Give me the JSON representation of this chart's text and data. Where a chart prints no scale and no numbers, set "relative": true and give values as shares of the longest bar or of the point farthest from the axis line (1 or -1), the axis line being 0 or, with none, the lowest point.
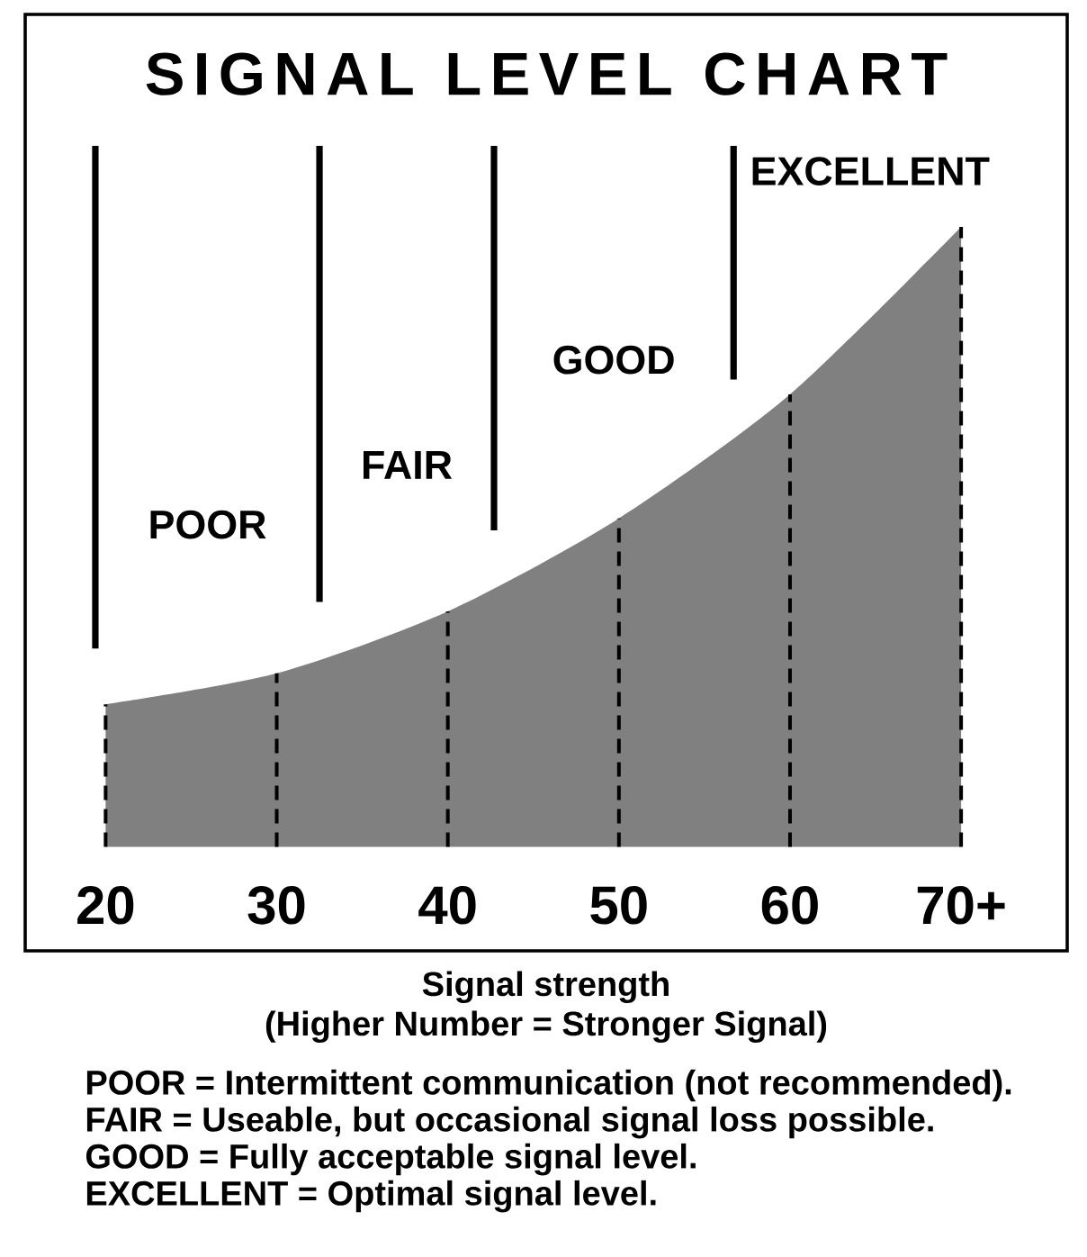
{
  "chart_data": {
    "type": "area",
    "title": "SIGNAL LEVEL CHART",
    "xlabel": "Signal strength",
    "x": [
      20,
      30,
      40,
      50,
      60,
      70
    ],
    "xlim": [
      15.3,
      76.2
    ],
    "xticks": [
      20,
      30,
      40,
      50,
      60,
      {
        "value": 70,
        "label": "70+"
      }
    ],
    "relative": true,
    "color": "#808080",
    "values": [
      0.23,
      0.28,
      0.38,
      0.53,
      0.73,
      1
    ],
    "ref_lines": [
      {
        "axis": "x",
        "value": 19.4,
        "label": "POOR"
      },
      {
        "axis": "x",
        "value": 32.5,
        "label": "FAIR"
      },
      {
        "axis": "x",
        "value": 42.7,
        "label": "GOOD"
      },
      {
        "axis": "x",
        "value": 56.7,
        "label": "EXCELLENT"
      },
      {
        "axis": "x",
        "value": 20,
        "line_style": "dashed"
      },
      {
        "axis": "x",
        "value": 30,
        "line_style": "dashed"
      },
      {
        "axis": "x",
        "value": 40,
        "line_style": "dashed"
      },
      {
        "axis": "x",
        "value": 50,
        "line_style": "dashed"
      },
      {
        "axis": "x",
        "value": 60,
        "line_style": "dashed"
      },
      {
        "axis": "x",
        "value": 70,
        "line_style": "dashed"
      }
    ],
    "annotations": [
      "(Higher Number = Stronger Signal)",
      "POOR = Intermittent communication (not recommended).",
      "FAIR = Useable, but occasional signal loss possible.",
      "GOOD = Fully acceptable signal level.",
      "EXCELLENT = Optimal signal level."
    ]
  }
}
